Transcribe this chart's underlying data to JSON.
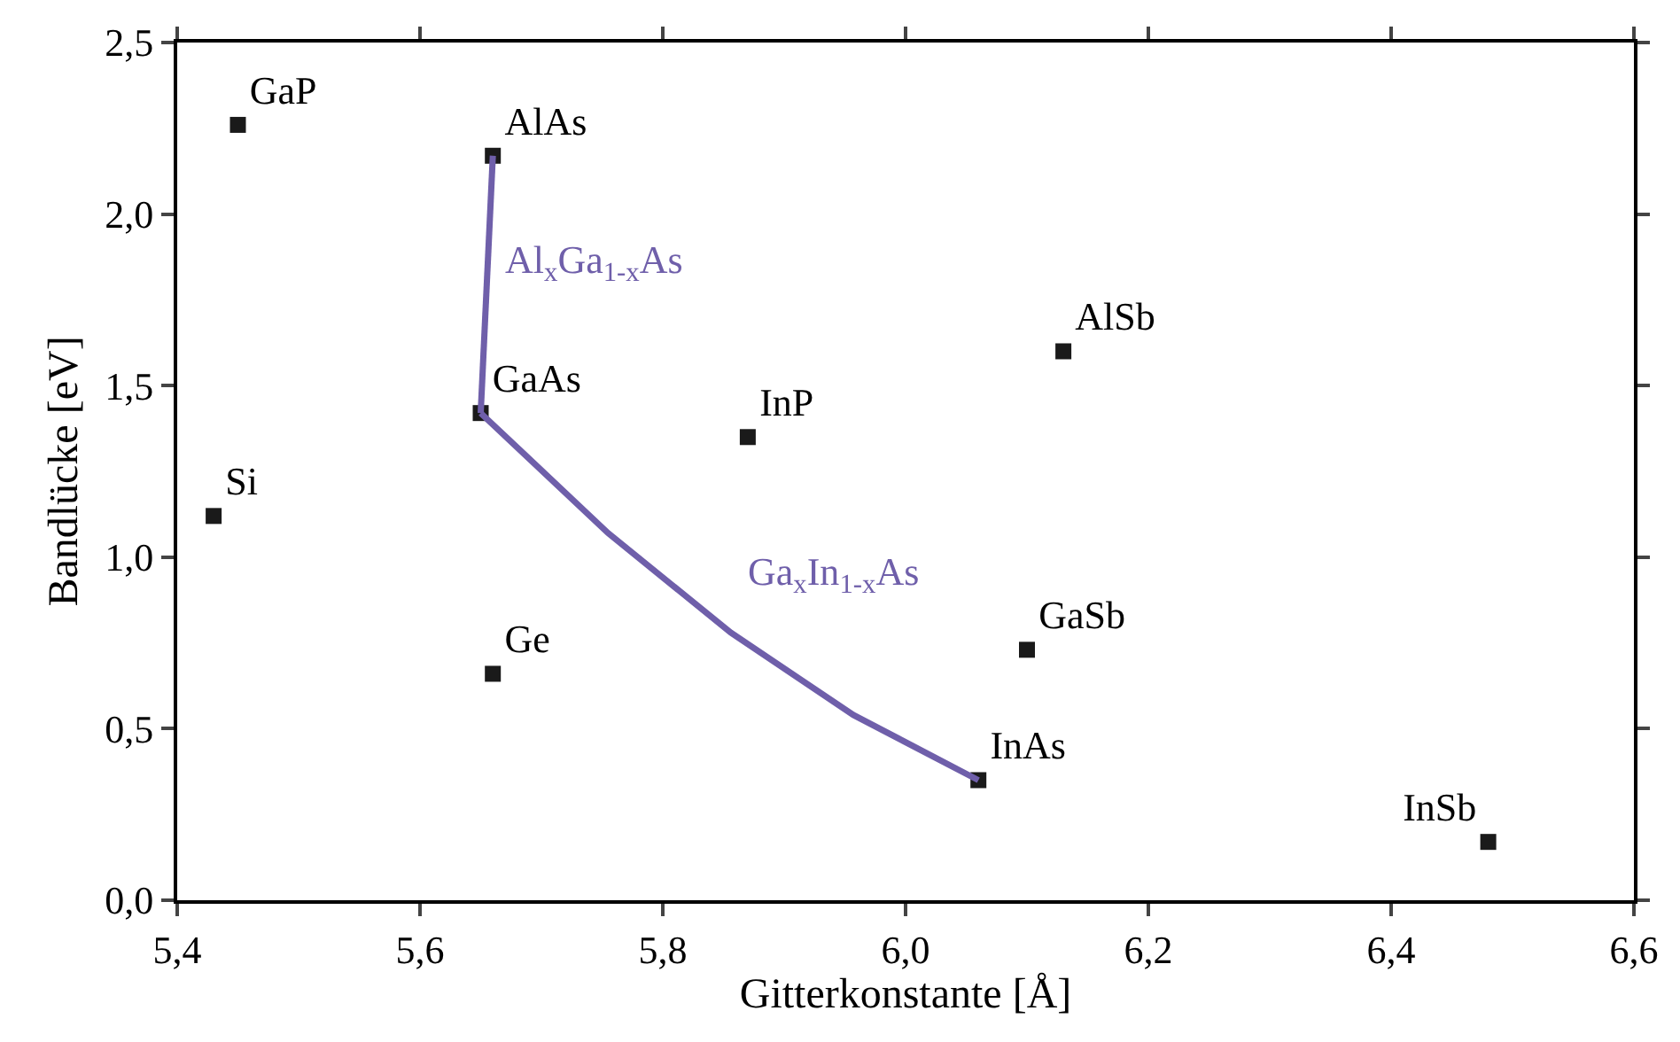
{
  "chart_data": {
    "type": "scatter",
    "xlabel": "Gitterkonstante [Å]",
    "ylabel": "Bandlücke [eV]",
    "xlim": [
      5.4,
      6.6
    ],
    "ylim": [
      0.0,
      2.5
    ],
    "xticks": [
      {
        "value": 5.4,
        "label": "5,4"
      },
      {
        "value": 5.6,
        "label": "5,6"
      },
      {
        "value": 5.8,
        "label": "5,8"
      },
      {
        "value": 6.0,
        "label": "6,0"
      },
      {
        "value": 6.2,
        "label": "6,2"
      },
      {
        "value": 6.4,
        "label": "6,4"
      },
      {
        "value": 6.6,
        "label": "6,6"
      }
    ],
    "yticks": [
      {
        "value": 0.0,
        "label": "0,0"
      },
      {
        "value": 0.5,
        "label": "0,5"
      },
      {
        "value": 1.0,
        "label": "1,0"
      },
      {
        "value": 1.5,
        "label": "1,5"
      },
      {
        "value": 2.0,
        "label": "2,0"
      },
      {
        "value": 2.5,
        "label": "2,5"
      }
    ],
    "series": [
      {
        "color": "#1a1a1a",
        "marker": "square",
        "x": [
          5.45,
          5.66,
          5.65,
          6.13,
          5.87,
          5.43,
          5.66,
          6.1,
          6.06,
          6.48
        ],
        "values": [
          2.26,
          2.17,
          1.42,
          1.6,
          1.35,
          1.12,
          0.66,
          0.73,
          0.35,
          0.17
        ],
        "value_labels": [
          "GaP",
          "AlAs",
          "GaAs",
          "AlSb",
          "InP",
          "Si",
          "Ge",
          "GaSb",
          "InAs",
          "InSb"
        ]
      },
      {
        "type": "line",
        "name": "Al$_{x}$Ga$_{1-x}$As",
        "color": "#6f5faa",
        "marker": "none",
        "x": [
          5.65,
          5.66
        ],
        "values": [
          1.42,
          2.17
        ]
      },
      {
        "type": "line",
        "name": "Ga$_{x}$In$_{1-x}$As",
        "color": "#6f5faa",
        "marker": "none",
        "x": [
          5.65,
          5.755,
          5.856,
          5.957,
          6.06
        ],
        "values": [
          1.42,
          1.07,
          0.78,
          0.54,
          0.35
        ]
      }
    ]
  }
}
